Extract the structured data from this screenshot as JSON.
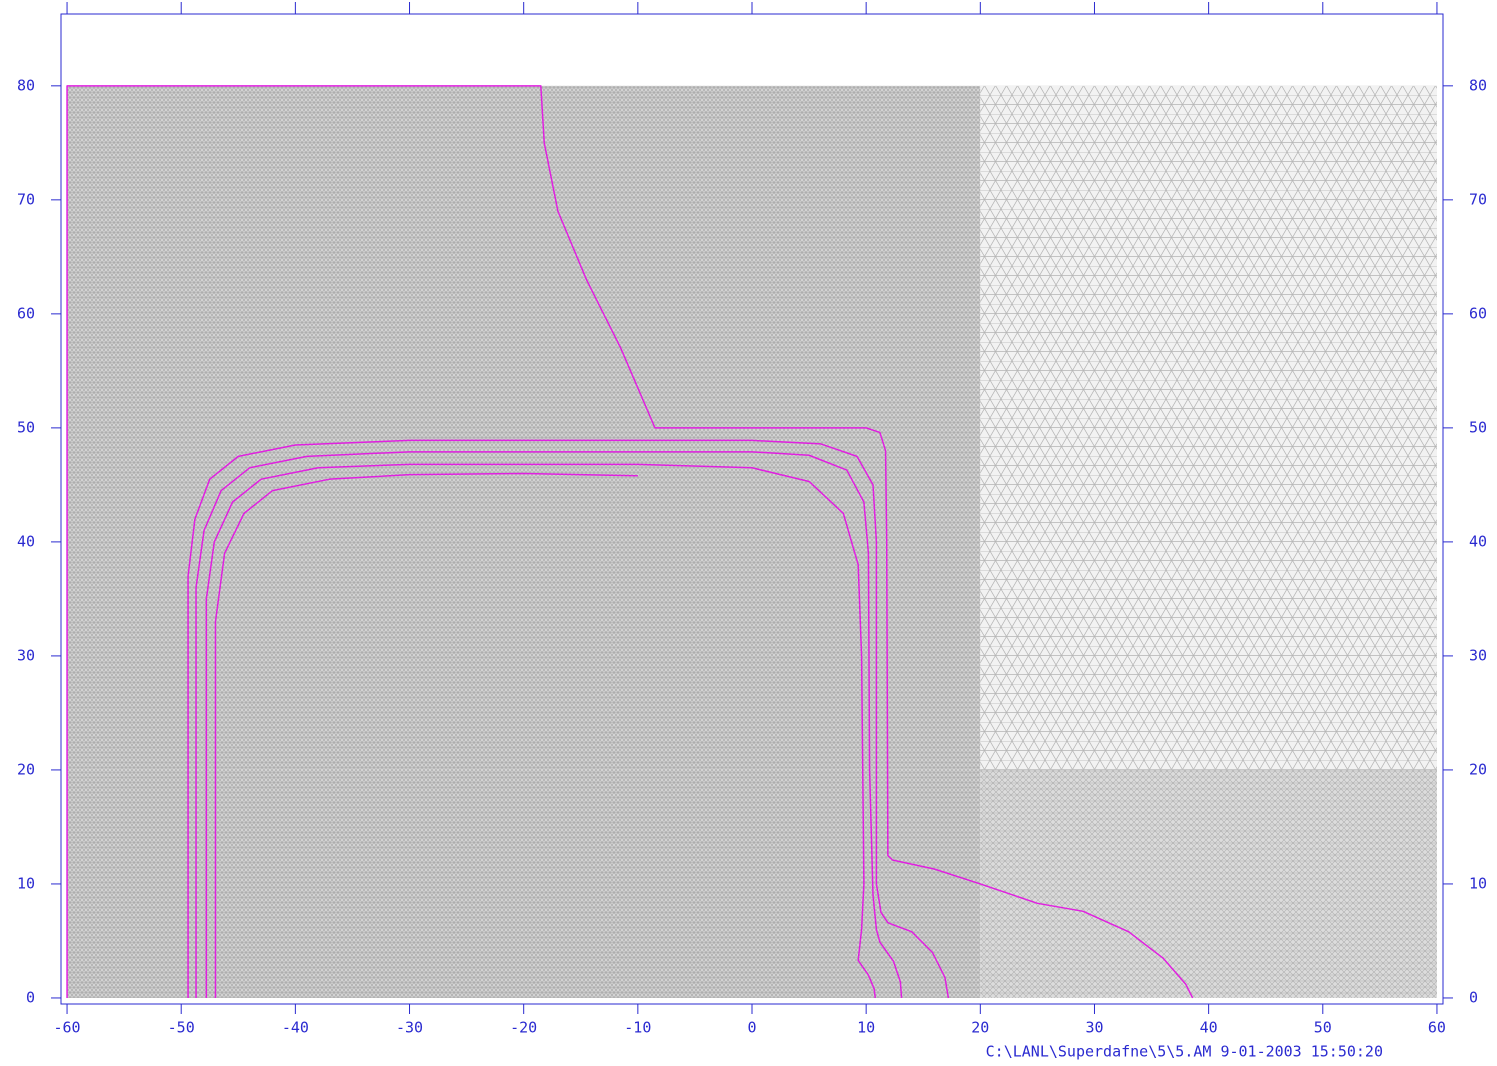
{
  "chart_data": {
    "type": "line",
    "xlim": [
      -60.53,
      60.53
    ],
    "ylim": [
      -0.53,
      86.3
    ],
    "xticks": [
      -60,
      -50,
      -40,
      -30,
      -20,
      -10,
      0,
      10,
      20,
      30,
      40,
      50,
      60
    ],
    "yticks": [
      0,
      10,
      20,
      30,
      40,
      50,
      60,
      70,
      80
    ],
    "axis_color": "#2a2ad0",
    "mesh": [
      {
        "x": [
          -60,
          20
        ],
        "y": [
          20,
          80
        ],
        "style": "dense"
      },
      {
        "x": [
          -60,
          20
        ],
        "y": [
          0,
          20
        ],
        "style": "dense"
      },
      {
        "x": [
          20,
          60
        ],
        "y": [
          20,
          80
        ],
        "style": "coarse"
      },
      {
        "x": [
          20,
          60
        ],
        "y": [
          0,
          20
        ],
        "style": "medium"
      }
    ],
    "series": [
      {
        "color": "#e020e0",
        "x": [
          -60,
          -60,
          -18.5,
          -18.2,
          -17,
          -14.5,
          -11.5,
          -8.5,
          10,
          11.2,
          11.7,
          11.8,
          11.9,
          12.3,
          16,
          20,
          25,
          29,
          33,
          36,
          38,
          38.6
        ],
        "values": [
          0,
          80,
          80,
          75,
          69,
          63,
          57,
          50,
          50,
          49.6,
          48,
          40,
          12.5,
          12.1,
          11.3,
          10,
          8.3,
          7.6,
          5.8,
          3.5,
          1.2,
          0
        ]
      },
      {
        "color": "#e020e0",
        "x": [
          -49.4,
          -49.4,
          -48.8,
          -47.5,
          -45,
          -40,
          -30,
          0,
          6,
          9.2,
          10.6,
          10.9,
          10.9,
          11.3,
          11.9,
          14,
          15.8,
          16.9,
          17.2
        ],
        "values": [
          0,
          37,
          42,
          45.5,
          47.5,
          48.5,
          48.9,
          48.9,
          48.6,
          47.5,
          45,
          40,
          10,
          7.5,
          6.6,
          5.8,
          4,
          1.8,
          0
        ]
      },
      {
        "color": "#e020e0",
        "x": [
          -48.7,
          -48.7,
          -48,
          -46.5,
          -44,
          -39,
          -30,
          0,
          5,
          8.3,
          9.8,
          10.2,
          10.3,
          10.6,
          10.9,
          11.2,
          12.4,
          13,
          13.1
        ],
        "values": [
          0,
          36,
          41,
          44.5,
          46.5,
          47.5,
          47.9,
          47.9,
          47.6,
          46.3,
          43.5,
          39,
          20,
          9,
          6,
          4.9,
          3.2,
          1.4,
          0
        ]
      },
      {
        "color": "#e020e0",
        "x": [
          -47.8,
          -47.8,
          -47.1,
          -45.5,
          -43,
          -38,
          -30,
          -10,
          0,
          5,
          8,
          9.3,
          9.6,
          9.8,
          9.6,
          9.3,
          10.2,
          10.7,
          10.8
        ],
        "values": [
          0,
          35,
          40,
          43.5,
          45.5,
          46.5,
          46.8,
          46.8,
          46.5,
          45.3,
          42.5,
          38,
          30,
          10,
          6,
          3.3,
          2,
          0.8,
          0
        ]
      },
      {
        "color": "#e020e0",
        "x": [
          -47.0,
          -47.0,
          -46.2,
          -44.5,
          -42,
          -37,
          -30,
          -20,
          -10
        ],
        "values": [
          0,
          33,
          39,
          42.5,
          44.5,
          45.5,
          45.9,
          46.0,
          45.8
        ]
      }
    ],
    "footer": "C:\\LANL\\Superdafne\\5\\5.AM  9-01-2003  15:50:20"
  }
}
